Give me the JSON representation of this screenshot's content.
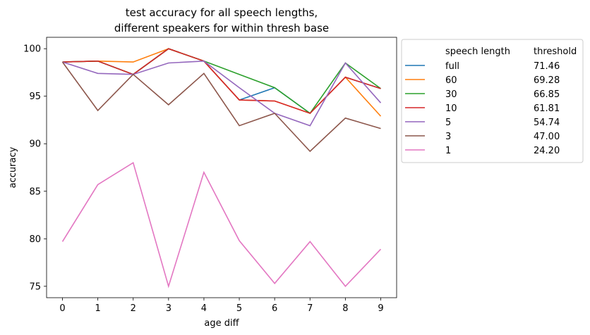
{
  "chart_data": {
    "type": "line",
    "title_lines": [
      "test accuracy for all speech lengths,",
      "different speakers for within thresh base"
    ],
    "xlabel": "age diff",
    "ylabel": "accuracy",
    "x": [
      0,
      1,
      2,
      3,
      4,
      5,
      6,
      7,
      8,
      9
    ],
    "xlim": [
      -0.45,
      9.45
    ],
    "ylim": [
      73.8,
      101.2
    ],
    "xticks": [
      "0",
      "1",
      "2",
      "3",
      "4",
      "5",
      "6",
      "7",
      "8",
      "9"
    ],
    "yticks": [
      "75",
      "80",
      "85",
      "90",
      "95",
      "100"
    ],
    "legend": {
      "position": "outside-top-right",
      "header_name": "speech length",
      "header_value": "threshold"
    },
    "series": [
      {
        "name": "full",
        "threshold": "71.46",
        "color": "#1f77b4",
        "values": [
          98.6,
          98.7,
          97.3,
          100.0,
          98.7,
          94.6,
          95.9,
          93.2,
          97.0,
          95.8
        ]
      },
      {
        "name": "60",
        "threshold": "69.28",
        "color": "#ff7f0e",
        "values": [
          98.6,
          98.7,
          98.6,
          100.0,
          98.7,
          94.6,
          94.5,
          93.2,
          97.0,
          92.9
        ]
      },
      {
        "name": "30",
        "threshold": "66.85",
        "color": "#2ca02c",
        "values": [
          98.6,
          98.7,
          97.3,
          100.0,
          98.7,
          97.3,
          95.9,
          93.2,
          98.5,
          95.8
        ]
      },
      {
        "name": "10",
        "threshold": "61.81",
        "color": "#d62728",
        "values": [
          98.6,
          98.7,
          97.3,
          100.0,
          98.7,
          94.6,
          94.5,
          93.2,
          97.0,
          95.8
        ]
      },
      {
        "name": "5",
        "threshold": "54.74",
        "color": "#9467bd",
        "values": [
          98.6,
          97.4,
          97.3,
          98.5,
          98.7,
          95.9,
          93.2,
          91.9,
          98.5,
          94.3
        ]
      },
      {
        "name": "3",
        "threshold": "47.00",
        "color": "#8c564b",
        "values": [
          98.6,
          93.5,
          97.3,
          94.1,
          97.4,
          91.9,
          93.2,
          89.2,
          92.7,
          91.6
        ]
      },
      {
        "name": "1",
        "threshold": "24.20",
        "color": "#e377c2",
        "values": [
          79.7,
          85.7,
          88.0,
          75.0,
          87.0,
          79.8,
          75.3,
          79.7,
          75.0,
          78.9
        ]
      }
    ]
  }
}
